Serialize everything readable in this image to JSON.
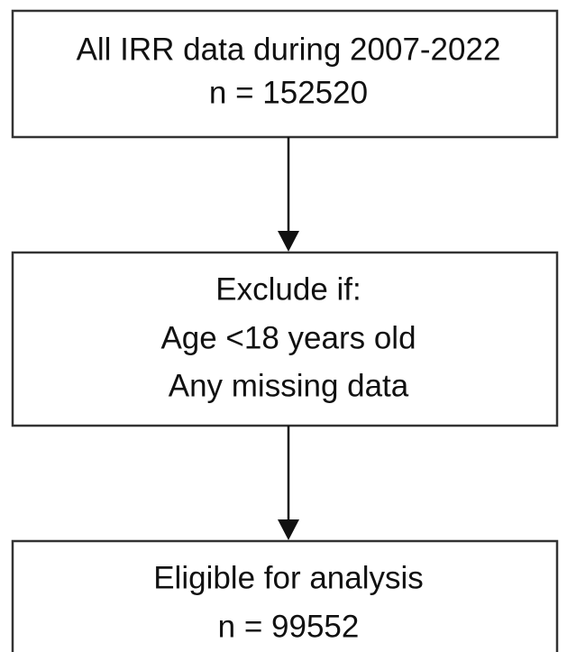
{
  "nodes": [
    {
      "lines": [
        "All IRR data during 2007-2022",
        "n = 152520"
      ]
    },
    {
      "lines": [
        "Exclude if:",
        "Age <18 years old",
        "Any missing data"
      ]
    },
    {
      "lines": [
        "Eligible for analysis",
        "n = 99552"
      ]
    }
  ]
}
